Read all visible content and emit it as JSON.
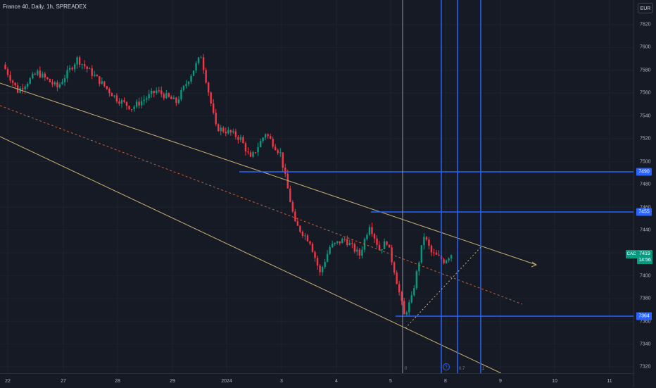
{
  "header": {
    "title": "France 40, Daily, 1h, SPREADEX"
  },
  "price_axis": {
    "currency": "EUR",
    "ticks": [
      "7620",
      "7600",
      "7580",
      "7560",
      "7540",
      "7520",
      "7500",
      "7480",
      "7460",
      "7440",
      "7420",
      "7400",
      "7380",
      "7360",
      "7340",
      "7320"
    ],
    "current_symbol": "CAC",
    "current_price": "7419",
    "countdown": "14:56",
    "level_labels": [
      "7490",
      "7455",
      "7364"
    ]
  },
  "time_axis": {
    "ticks": [
      "22",
      "27",
      "28",
      "29",
      "2024",
      "3",
      "4",
      "5",
      "8",
      "9",
      "10",
      "11"
    ]
  },
  "fib_labels": [
    "0",
    "0.7",
    "1"
  ],
  "icons": {
    "fib-end-handle": "lightning-icon"
  },
  "colors": {
    "bull": "#089981",
    "bear": "#f23645",
    "trendline": "#c7b073",
    "level": "#2962ff",
    "cursor": "#9598a1"
  }
}
